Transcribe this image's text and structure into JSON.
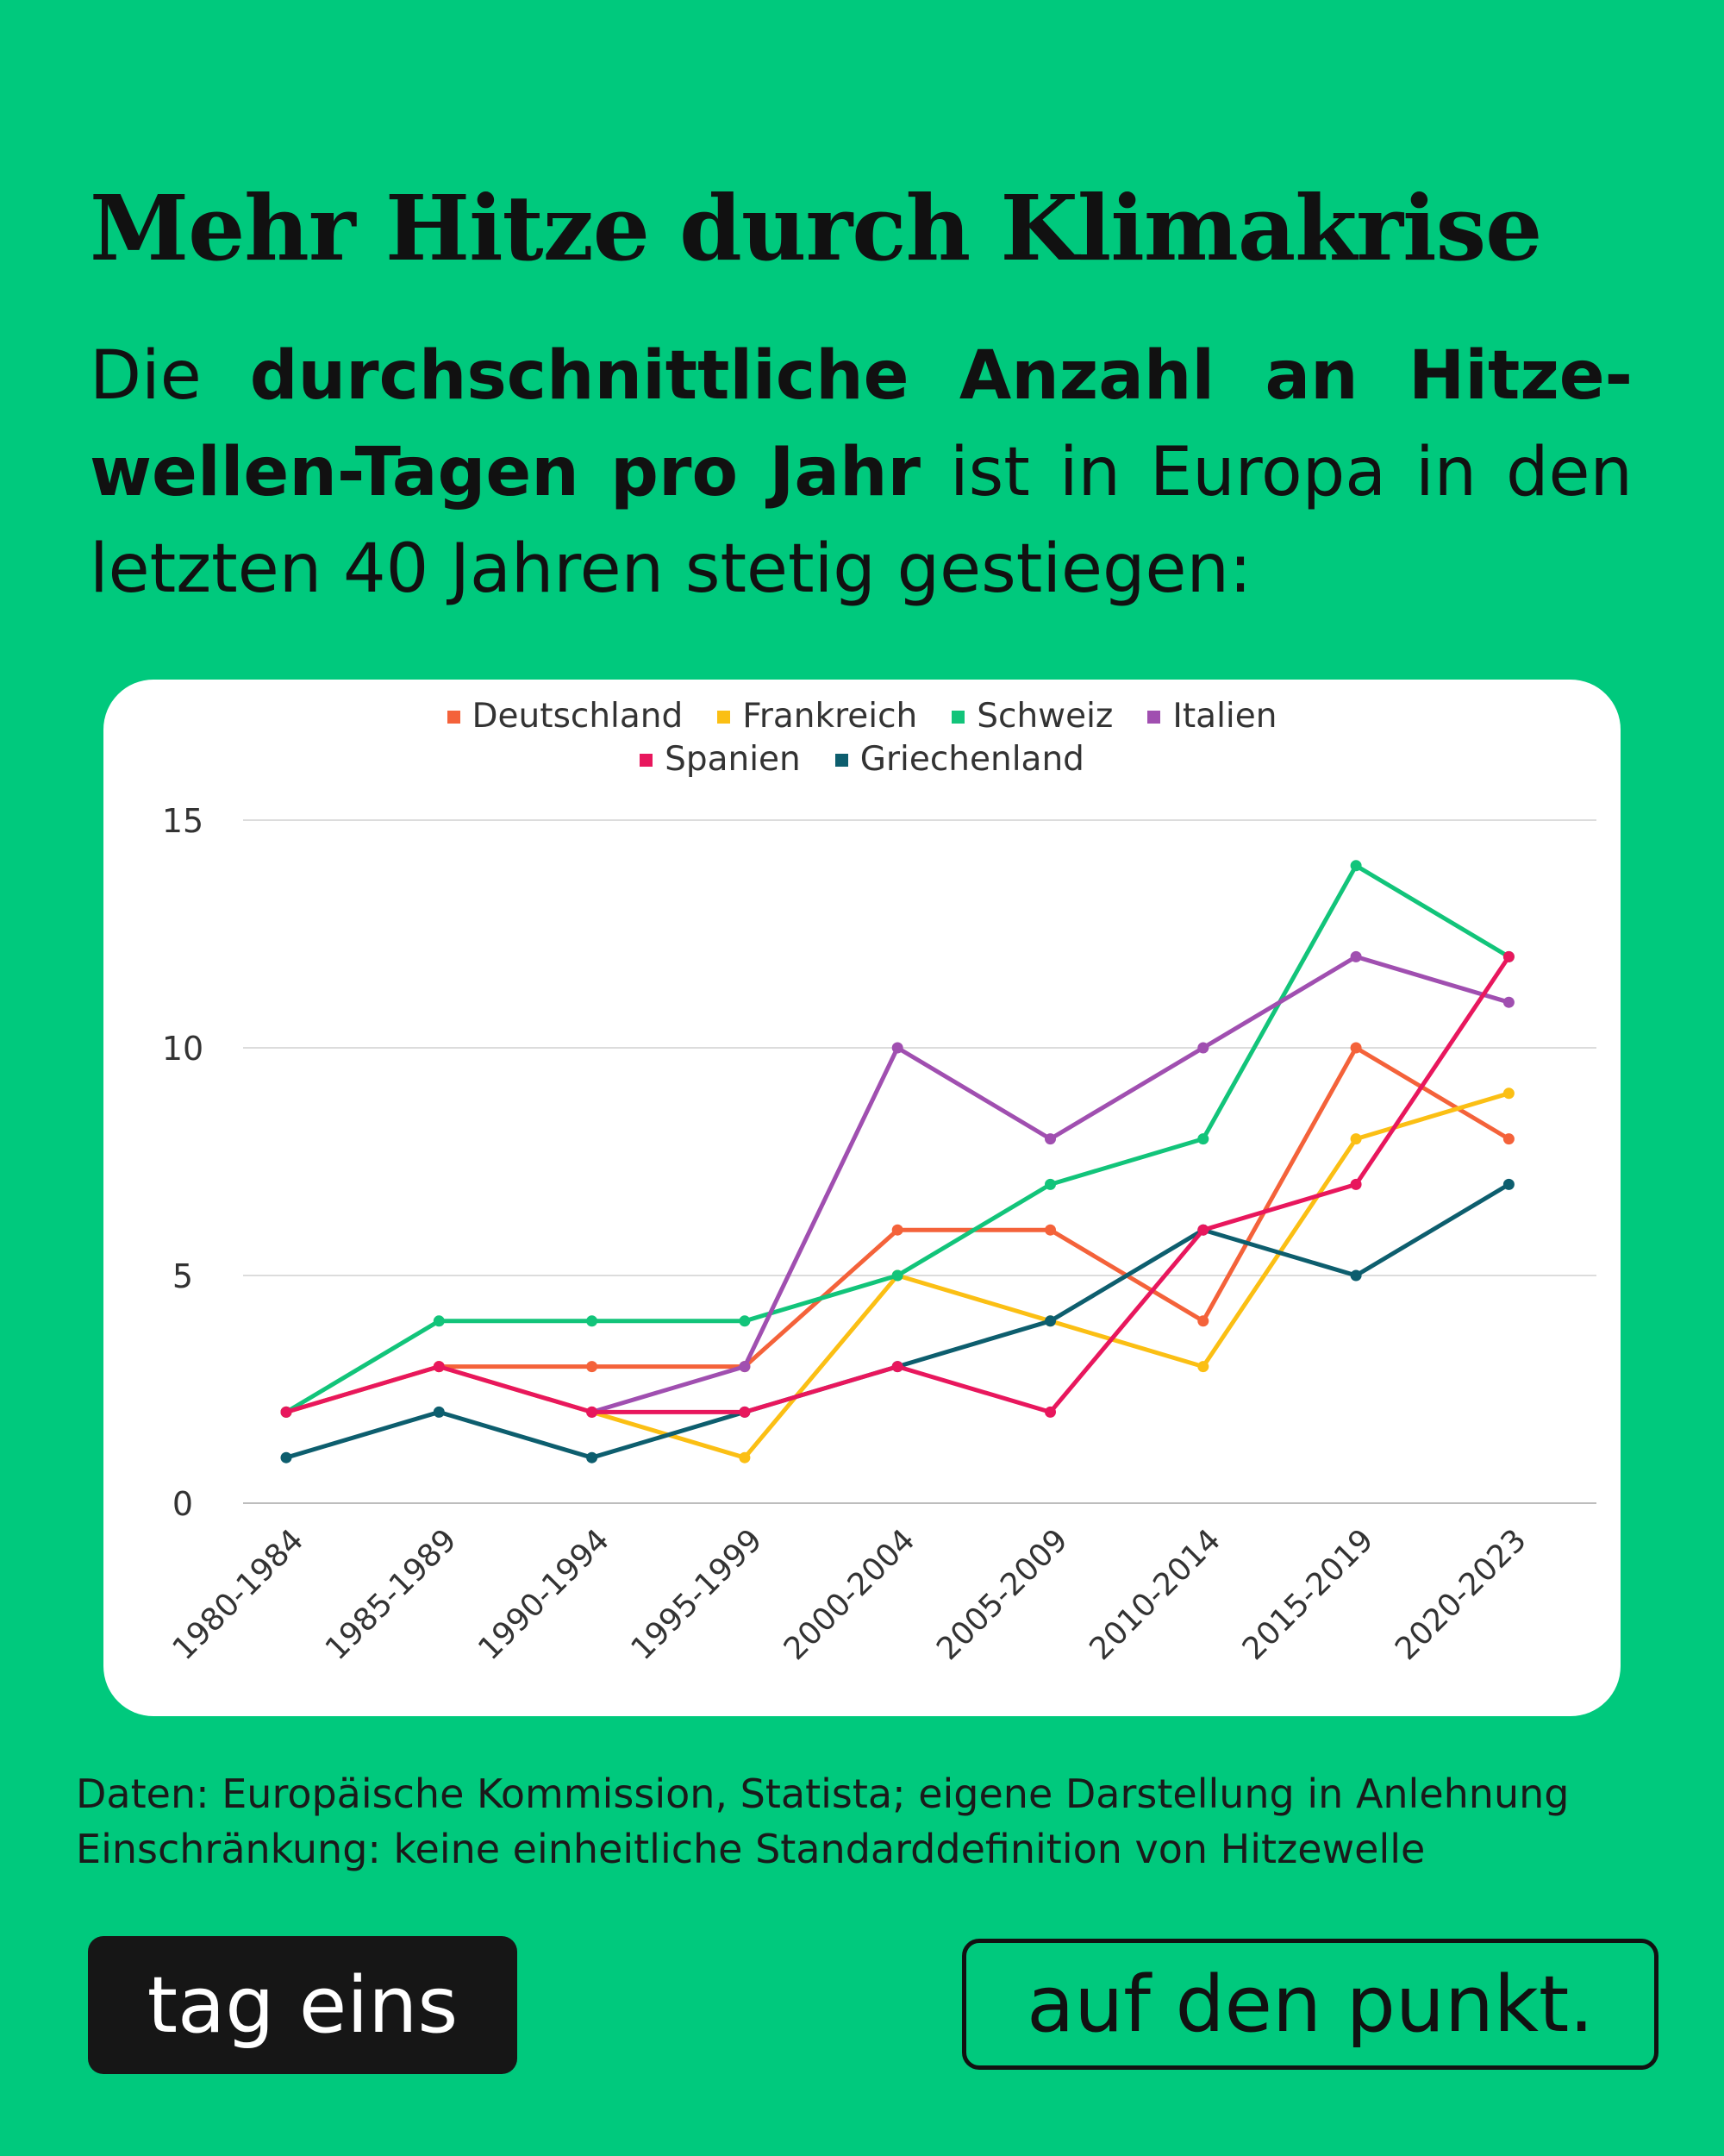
{
  "header": {
    "title": "Mehr Hitze durch Klimakrise",
    "intro_prefix": "Die ",
    "intro_bold": "durchschnittliche Anzahl an Hitze-wellen-Tagen pro Jahr",
    "intro_suffix": " ist in Europa in den letzten 40 Jahren stetig gestiegen:"
  },
  "chart_data": {
    "type": "line",
    "title": "",
    "xlabel": "",
    "ylabel": "",
    "ylim": [
      0,
      15
    ],
    "yticks": [
      0,
      5,
      10,
      15
    ],
    "grid": true,
    "legend_position": "top-center",
    "categories": [
      "1980-1984",
      "1985-1989",
      "1990-1994",
      "1995-1999",
      "2000-2004",
      "2005-2009",
      "2010-2014",
      "2015-2019",
      "2020-2023"
    ],
    "series": [
      {
        "name": "Deutschland",
        "color": "#f4623a",
        "values": [
          2,
          3,
          3,
          3,
          6,
          6,
          4,
          10,
          8
        ]
      },
      {
        "name": "Frankreich",
        "color": "#fbbf14",
        "values": [
          2,
          3,
          2,
          1,
          5,
          4,
          3,
          8,
          9
        ]
      },
      {
        "name": "Schweiz",
        "color": "#12c47a",
        "values": [
          2,
          4,
          4,
          4,
          5,
          7,
          8,
          14,
          12
        ]
      },
      {
        "name": "Italien",
        "color": "#a04fb0",
        "values": [
          null,
          null,
          2,
          3,
          10,
          8,
          10,
          12,
          11
        ]
      },
      {
        "name": "Spanien",
        "color": "#e8175d",
        "values": [
          2,
          3,
          2,
          2,
          3,
          2,
          6,
          7,
          12
        ]
      },
      {
        "name": "Griechenland",
        "color": "#0d5e6e",
        "values": [
          1,
          2,
          1,
          2,
          3,
          4,
          6,
          5,
          7
        ]
      }
    ]
  },
  "footer": {
    "source_line1": "Daten: Europäische Kommission, Statista; eigene Darstellung in Anlehnung",
    "source_line2": "Einschränkung: keine einheitliche Standarddefinition von Hitzewelle",
    "brand_left": "tag eins",
    "brand_right": "auf den punkt."
  }
}
